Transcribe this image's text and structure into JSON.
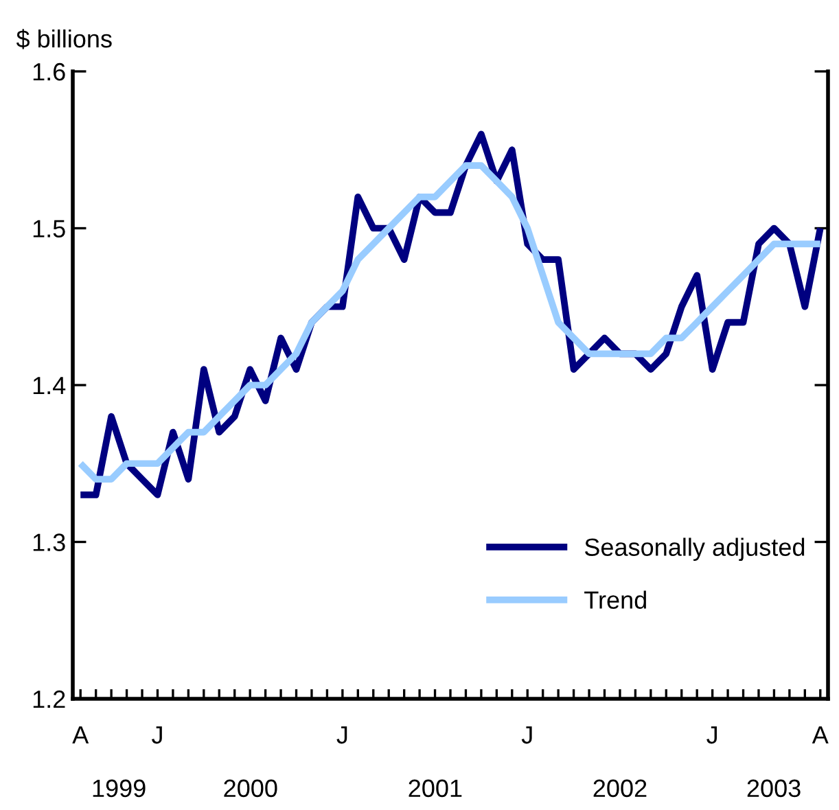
{
  "chart_data": {
    "type": "line",
    "ylabel": "$ billions",
    "categories": [
      "A",
      null,
      null,
      null,
      null,
      "J",
      null,
      null,
      null,
      null,
      null,
      null,
      null,
      null,
      null,
      null,
      null,
      "J",
      null,
      null,
      null,
      null,
      null,
      null,
      null,
      null,
      null,
      null,
      null,
      "J",
      null,
      null,
      null,
      null,
      null,
      null,
      null,
      null,
      null,
      null,
      null,
      "J",
      null,
      null,
      null,
      null,
      null,
      null,
      "A"
    ],
    "series": [
      {
        "name": "Seasonally adjusted",
        "color": "#000080",
        "values": [
          1.33,
          1.33,
          1.38,
          1.35,
          1.34,
          1.33,
          1.37,
          1.34,
          1.41,
          1.37,
          1.38,
          1.41,
          1.39,
          1.43,
          1.41,
          1.44,
          1.45,
          1.45,
          1.52,
          1.5,
          1.5,
          1.48,
          1.52,
          1.51,
          1.51,
          1.54,
          1.56,
          1.53,
          1.55,
          1.49,
          1.48,
          1.48,
          1.41,
          1.42,
          1.43,
          1.42,
          1.42,
          1.41,
          1.42,
          1.45,
          1.47,
          1.41,
          1.44,
          1.44,
          1.49,
          1.5,
          1.49,
          1.45,
          1.5
        ]
      },
      {
        "name": "Trend",
        "color": "#99ccff",
        "values": [
          1.35,
          1.34,
          1.34,
          1.35,
          1.35,
          1.35,
          1.36,
          1.37,
          1.37,
          1.38,
          1.39,
          1.4,
          1.4,
          1.41,
          1.42,
          1.44,
          1.45,
          1.46,
          1.48,
          1.49,
          1.5,
          1.51,
          1.52,
          1.52,
          1.53,
          1.54,
          1.54,
          1.53,
          1.52,
          1.5,
          1.47,
          1.44,
          1.43,
          1.42,
          1.42,
          1.42,
          1.42,
          1.42,
          1.43,
          1.43,
          1.44,
          1.45,
          1.46,
          1.47,
          1.48,
          1.49,
          1.49,
          1.49,
          1.49
        ]
      }
    ],
    "x2lim": [
      "1999-07-16",
      "2003-08-16"
    ],
    "x2ticks": [
      {
        "value": "1999-10-15",
        "label": "1999"
      },
      {
        "value": "2000-07-01",
        "label": "2000"
      },
      {
        "value": "2001-07-01",
        "label": "2001"
      },
      {
        "value": "2002-07-01",
        "label": "2002"
      },
      {
        "value": "2003-05-01",
        "label": "2003"
      }
    ],
    "ylim": [
      1.2,
      1.6
    ],
    "yticks": [
      1.2,
      1.3,
      1.4,
      1.5,
      1.6
    ],
    "grid": false,
    "legend": "bottom right",
    "line_style": "solid",
    "marker": "none"
  }
}
